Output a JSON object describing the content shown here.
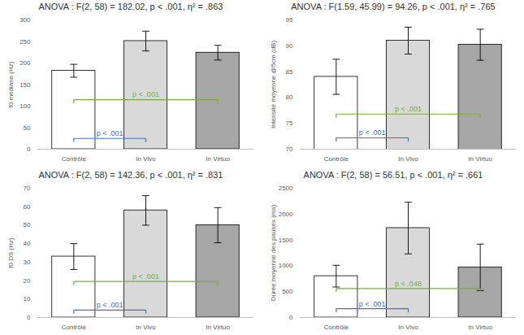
{
  "chart_data": [
    {
      "type": "bar",
      "title": "ANOVA : F(2, 58) = 182.02, p < .001, η² = .863",
      "y_label": "f0 médiane (Hz)",
      "categories": [
        "Contrôle",
        "In Vivo",
        "In Virtuo"
      ],
      "values": [
        182,
        251,
        224
      ],
      "errors": [
        15,
        23,
        17
      ],
      "colors": [
        "#ffffff",
        "#d9d9d9",
        "#a6a6a6"
      ],
      "ylim": [
        0,
        300
      ],
      "yticks": [
        0,
        50,
        100,
        150,
        200,
        250,
        300
      ],
      "annotations": [
        {
          "from": "Contrôle",
          "to": "In Virtuo",
          "y": 115,
          "label": "p < .001",
          "color": "#70ad47"
        },
        {
          "from": "Contrôle",
          "to": "In Vivo",
          "y": 25,
          "label": "p < .001",
          "color": "#4472c4"
        }
      ]
    },
    {
      "type": "bar",
      "title": "ANOVA : F(1.59, 45.99) = 94.26, p < .001, η² = .765",
      "y_label": "Intensité moyenne @5cm (dB)",
      "categories": [
        "Contrôle",
        "In Vivo",
        "In Virtuo"
      ],
      "values": [
        84,
        91,
        90.2
      ],
      "errors": [
        3.4,
        2.6,
        3
      ],
      "colors": [
        "#ffffff",
        "#d9d9d9",
        "#a6a6a6"
      ],
      "ylim": [
        70,
        95
      ],
      "yticks": [
        70,
        75,
        80,
        85,
        90,
        95
      ],
      "annotations": [
        {
          "from": "Contrôle",
          "to": "In Virtuo",
          "y": 76.8,
          "label": "p < .001",
          "color": "#70ad47"
        },
        {
          "from": "Contrôle",
          "to": "In Vivo",
          "y": 72.2,
          "label": "p < .001",
          "color": "#4472c4"
        }
      ]
    },
    {
      "type": "bar",
      "title": "ANOVA : F(2, 58) = 142.36, p < .001, η² = .831",
      "y_label": "f0 DS (Hz)",
      "categories": [
        "Contrôle",
        "In Vivo",
        "In Virtuo"
      ],
      "values": [
        33,
        58,
        50
      ],
      "errors": [
        7,
        8,
        9.5
      ],
      "colors": [
        "#ffffff",
        "#d9d9d9",
        "#a6a6a6"
      ],
      "ylim": [
        0,
        70
      ],
      "yticks": [
        0,
        10,
        20,
        30,
        40,
        50,
        60,
        70
      ],
      "annotations": [
        {
          "from": "Contrôle",
          "to": "In Virtuo",
          "y": 19.5,
          "label": "p < .001",
          "color": "#70ad47"
        },
        {
          "from": "Contrôle",
          "to": "In Vivo",
          "y": 4,
          "label": "p < .001",
          "color": "#4472c4"
        }
      ]
    },
    {
      "type": "bar",
      "title": "ANOVA : F(2, 58) = 56.51, p < .001, η² = .661",
      "y_label": "Durée moyenne des pauses (ms)",
      "categories": [
        "Contrôle",
        "In Vivo",
        "In Virtuo"
      ],
      "values": [
        800,
        1730,
        970
      ],
      "errors": [
        210,
        500,
        450
      ],
      "colors": [
        "#ffffff",
        "#d9d9d9",
        "#a6a6a6"
      ],
      "ylim": [
        0,
        2500
      ],
      "yticks": [
        0,
        500,
        1000,
        1500,
        2000,
        2500
      ],
      "annotations": [
        {
          "from": "Contrôle",
          "to": "In Virtuo",
          "y": 560,
          "label": "p < .048",
          "color": "#70ad47"
        },
        {
          "from": "Contrôle",
          "to": "In Vivo",
          "y": 170,
          "label": "p < .001",
          "color": "#4472c4"
        }
      ]
    }
  ]
}
